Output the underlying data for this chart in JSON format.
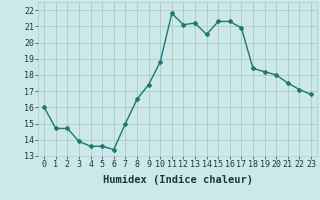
{
  "x": [
    0,
    1,
    2,
    3,
    4,
    5,
    6,
    7,
    8,
    9,
    10,
    11,
    12,
    13,
    14,
    15,
    16,
    17,
    18,
    19,
    20,
    21,
    22,
    23
  ],
  "y": [
    16.0,
    14.7,
    14.7,
    13.9,
    13.6,
    13.6,
    13.4,
    15.0,
    16.5,
    17.4,
    18.8,
    21.8,
    21.1,
    21.2,
    20.5,
    21.3,
    21.3,
    20.9,
    18.4,
    18.2,
    18.0,
    17.5,
    17.1,
    16.8
  ],
  "line_color": "#1a7a6e",
  "marker": "D",
  "marker_size": 2.0,
  "bg_color": "#cce8e8",
  "grid_color": "#aacaca",
  "xlabel": "Humidex (Indice chaleur)",
  "xlabel_fontsize": 7.5,
  "xlim": [
    -0.5,
    23.5
  ],
  "ylim": [
    13,
    22.5
  ],
  "yticks": [
    13,
    14,
    15,
    16,
    17,
    18,
    19,
    20,
    21,
    22
  ],
  "xticks": [
    0,
    1,
    2,
    3,
    4,
    5,
    6,
    7,
    8,
    9,
    10,
    11,
    12,
    13,
    14,
    15,
    16,
    17,
    18,
    19,
    20,
    21,
    22,
    23
  ],
  "tick_fontsize": 6.0,
  "line_width": 1.0
}
